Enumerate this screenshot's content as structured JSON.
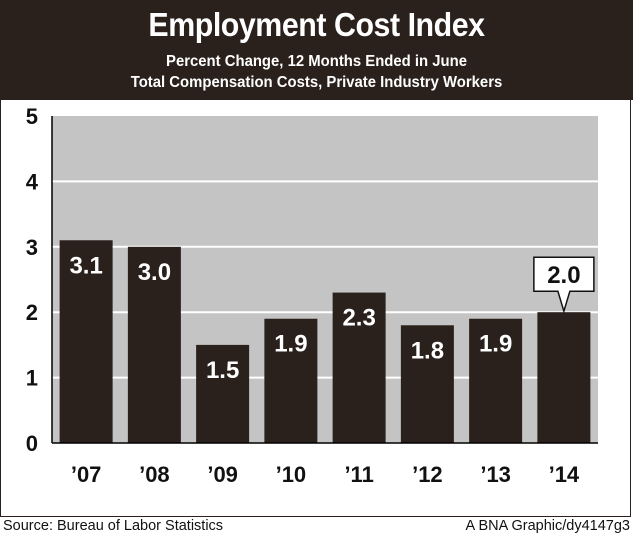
{
  "chart_data": {
    "type": "bar",
    "title": "Employment Cost Index",
    "subtitle_line1": "Percent Change, 12 Months Ended in June",
    "subtitle_line2": "Total Compensation Costs, Private Industry Workers",
    "categories": [
      "’07",
      "’08",
      "’09",
      "’10",
      "’11",
      "’12",
      "’13",
      "’14"
    ],
    "values": [
      3.1,
      3.0,
      1.5,
      1.9,
      2.3,
      1.8,
      1.9,
      2.0
    ],
    "value_labels": [
      "3.1",
      "3.0",
      "1.5",
      "1.9",
      "2.3",
      "1.8",
      "1.9",
      "2.0"
    ],
    "callout_index": 7,
    "ylim": [
      0,
      5
    ],
    "yticks": [
      "0",
      "1",
      "2",
      "3",
      "4",
      "5"
    ],
    "grid": true,
    "xlabel": "",
    "ylabel": ""
  },
  "footer": {
    "source": "Source: Bureau of Labor Statistics",
    "credit": "A BNA Graphic/dy4147g3"
  },
  "colors": {
    "header_bg": "#2a201c",
    "plot_bg": "#c4c4c4",
    "bar": "#2a201c",
    "grid": "#ffffff",
    "text": "#111111"
  }
}
